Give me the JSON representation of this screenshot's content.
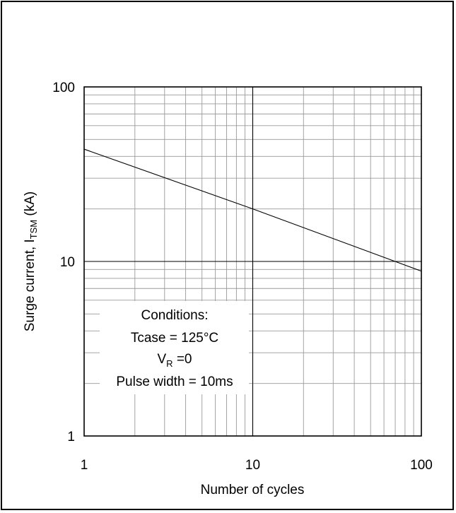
{
  "chart_data": {
    "type": "line",
    "title": "",
    "xlabel": "Number of cycles",
    "ylabel": {
      "prefix": "Surge current, I",
      "subscript": "TSM",
      "suffix": " (kA)"
    },
    "x_scale": "log",
    "y_scale": "log",
    "xlim": [
      1,
      100
    ],
    "ylim": [
      1,
      100
    ],
    "x_ticks": [
      1,
      10,
      100
    ],
    "x_tick_labels": [
      "1",
      "10",
      "100"
    ],
    "y_ticks": [
      1,
      10,
      100
    ],
    "y_tick_labels": [
      "1",
      "10",
      "100"
    ],
    "grid": true,
    "legend": "none",
    "series": [
      {
        "color": "#000000",
        "points": [
          {
            "x": 1,
            "y": 44
          },
          {
            "x": 10,
            "y": 20
          },
          {
            "x": 100,
            "y": 8.8
          }
        ]
      }
    ],
    "annotation": {
      "title": "Conditions:",
      "tcase": "Tcase = 125°C",
      "vr_main": "V",
      "vr_sub": "R",
      "vr_rest": " =0",
      "pulse": "Pulse width = 10ms"
    }
  }
}
